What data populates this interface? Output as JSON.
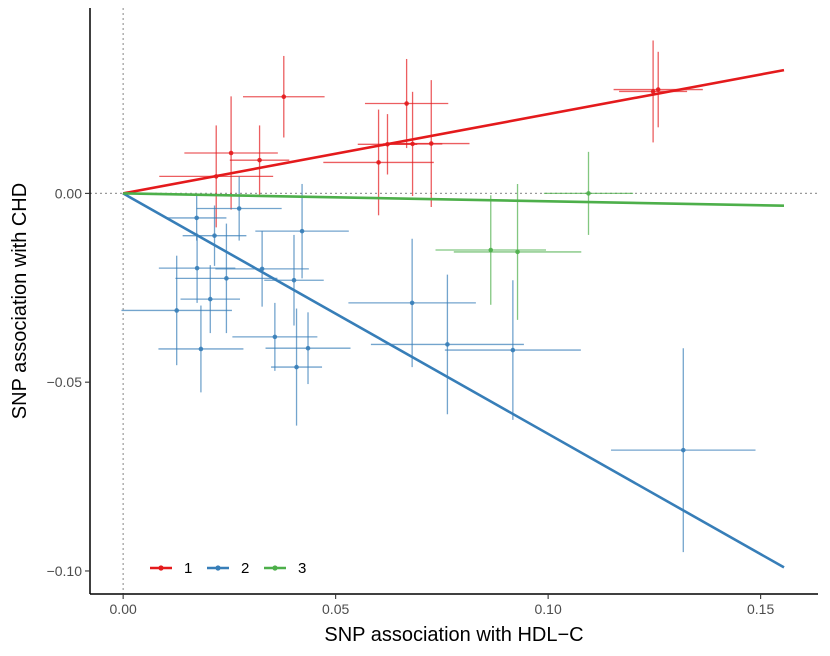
{
  "chart_data": {
    "type": "scatter",
    "title": "",
    "xlabel": "SNP association with HDL−C",
    "ylabel": "SNP association with CHD",
    "xlim": [
      -0.0078,
      0.1635
    ],
    "ylim": [
      -0.1061,
      0.0491
    ],
    "xticks": [
      0.0,
      0.05,
      0.1,
      0.15
    ],
    "xtick_labels": [
      "0.00",
      "0.05",
      "0.10",
      "0.15"
    ],
    "yticks": [
      -0.1,
      -0.05,
      0.0
    ],
    "ytick_labels": [
      "−0.10",
      "−0.05",
      "0.00"
    ],
    "reference_lines": {
      "x": 0,
      "y": 0,
      "style": "dotted"
    },
    "legend": {
      "position": "bottom-left",
      "entries": [
        "1",
        "2",
        "3"
      ]
    },
    "series": [
      {
        "name": "1",
        "color": "#E41A1C",
        "fit_slope": 0.21,
        "points": [
          {
            "x": 0.0219,
            "y": 0.0045,
            "xerr": 0.0134,
            "yerr": 0.0135
          },
          {
            "x": 0.0254,
            "y": 0.0107,
            "xerr": 0.011,
            "yerr": 0.015
          },
          {
            "x": 0.0321,
            "y": 0.0088,
            "xerr": 0.007,
            "yerr": 0.0092
          },
          {
            "x": 0.0378,
            "y": 0.0256,
            "xerr": 0.0096,
            "yerr": 0.0108
          },
          {
            "x": 0.0601,
            "y": 0.0082,
            "xerr": 0.013,
            "yerr": 0.014
          },
          {
            "x": 0.0622,
            "y": 0.013,
            "xerr": 0.007,
            "yerr": 0.008
          },
          {
            "x": 0.0667,
            "y": 0.0238,
            "xerr": 0.0098,
            "yerr": 0.0118
          },
          {
            "x": 0.0681,
            "y": 0.0131,
            "xerr": 0.007,
            "yerr": 0.0138
          },
          {
            "x": 0.0725,
            "y": 0.0132,
            "xerr": 0.009,
            "yerr": 0.0168
          },
          {
            "x": 0.1247,
            "y": 0.027,
            "xerr": 0.008,
            "yerr": 0.0135
          },
          {
            "x": 0.1259,
            "y": 0.0275,
            "xerr": 0.0105,
            "yerr": 0.01
          }
        ]
      },
      {
        "name": "2",
        "color": "#377EB8",
        "fit_slope": -0.637,
        "points": [
          {
            "x": 0.0126,
            "y": -0.031,
            "xerr": 0.013,
            "yerr": 0.0145
          },
          {
            "x": 0.0173,
            "y": -0.0065,
            "xerr": 0.007,
            "yerr": 0.006
          },
          {
            "x": 0.0174,
            "y": -0.0198,
            "xerr": 0.009,
            "yerr": 0.0092
          },
          {
            "x": 0.0183,
            "y": -0.0412,
            "xerr": 0.01,
            "yerr": 0.0115
          },
          {
            "x": 0.0205,
            "y": -0.028,
            "xerr": 0.007,
            "yerr": 0.009
          },
          {
            "x": 0.0215,
            "y": -0.0112,
            "xerr": 0.0075,
            "yerr": 0.008
          },
          {
            "x": 0.0243,
            "y": -0.0225,
            "xerr": 0.012,
            "yerr": 0.0145
          },
          {
            "x": 0.0273,
            "y": -0.004,
            "xerr": 0.01,
            "yerr": 0.0085
          },
          {
            "x": 0.0327,
            "y": -0.02,
            "xerr": 0.011,
            "yerr": 0.01
          },
          {
            "x": 0.0357,
            "y": -0.038,
            "xerr": 0.01,
            "yerr": 0.009
          },
          {
            "x": 0.0402,
            "y": -0.023,
            "xerr": 0.007,
            "yerr": 0.012
          },
          {
            "x": 0.0408,
            "y": -0.046,
            "xerr": 0.006,
            "yerr": 0.0155
          },
          {
            "x": 0.0421,
            "y": -0.01,
            "xerr": 0.011,
            "yerr": 0.0125
          },
          {
            "x": 0.0435,
            "y": -0.041,
            "xerr": 0.01,
            "yerr": 0.0095
          },
          {
            "x": 0.068,
            "y": -0.029,
            "xerr": 0.015,
            "yerr": 0.017
          },
          {
            "x": 0.0763,
            "y": -0.04,
            "xerr": 0.018,
            "yerr": 0.0185
          },
          {
            "x": 0.0917,
            "y": -0.0415,
            "xerr": 0.016,
            "yerr": 0.0185
          },
          {
            "x": 0.1318,
            "y": -0.068,
            "xerr": 0.017,
            "yerr": 0.027
          }
        ]
      },
      {
        "name": "3",
        "color": "#4DAF4A",
        "fit_slope": -0.021,
        "points": [
          {
            "x": 0.0865,
            "y": -0.015,
            "xerr": 0.013,
            "yerr": 0.0145
          },
          {
            "x": 0.0928,
            "y": -0.0155,
            "xerr": 0.015,
            "yerr": 0.018
          },
          {
            "x": 0.1095,
            "y": 0.0,
            "xerr": 0.0105,
            "yerr": 0.011
          }
        ]
      }
    ]
  }
}
